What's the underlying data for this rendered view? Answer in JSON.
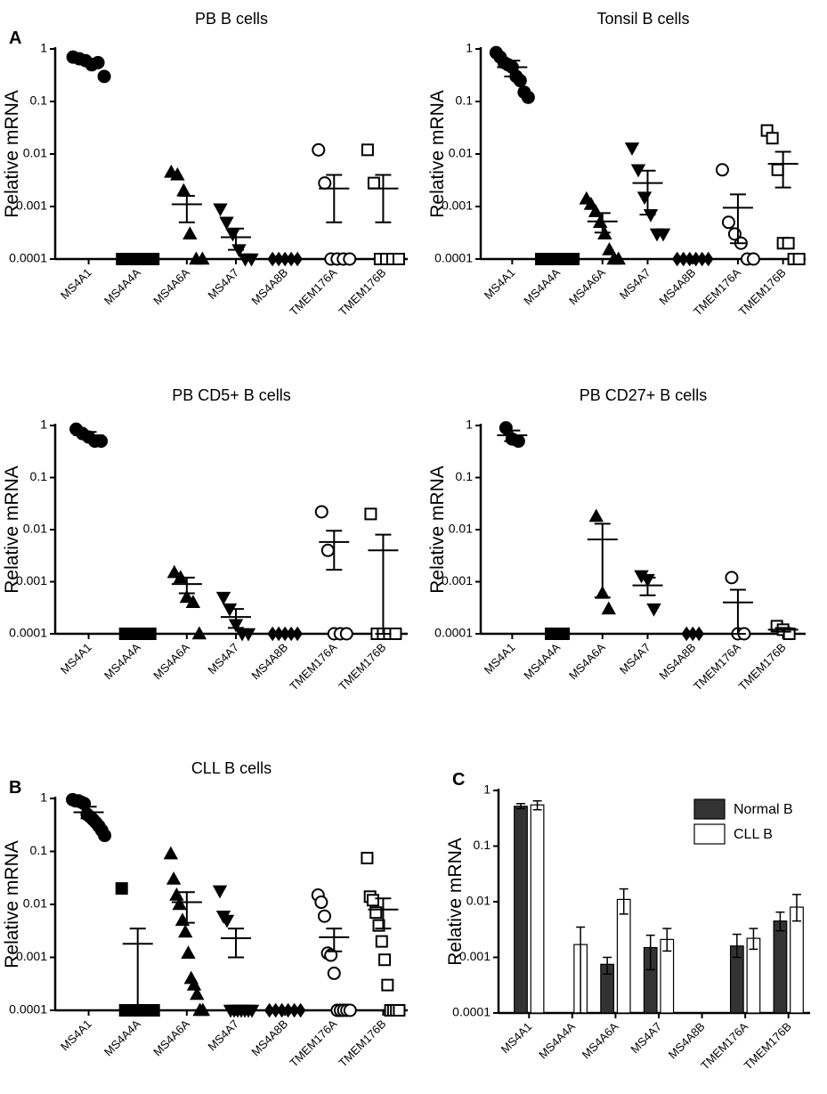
{
  "chart_data": [
    {
      "type": "dotplot",
      "panel_label": "A",
      "title": "PB B cells",
      "y_label": "Relative mRNA",
      "log_y": true,
      "categories": [
        "MS4A1",
        "MS4A4A",
        "MS4A6A",
        "MS4A7",
        "MS4A8B",
        "TMEM176A",
        "TMEM176B"
      ],
      "ylim": [
        0.0001,
        1
      ],
      "yticks": [
        0.0001,
        0.001,
        0.01,
        0.1,
        1
      ],
      "groups": [
        {
          "marker": "circle",
          "filled": true,
          "points": [
            0.7,
            0.65,
            0.6,
            0.5,
            0.55,
            0.3
          ],
          "mean": 0.6,
          "lower": 0.55,
          "upper": 0.65
        },
        {
          "marker": "square",
          "filled": true,
          "points": [
            0.0001,
            0.0001,
            0.0001,
            0.0001,
            0.0001,
            0.0001
          ],
          "mean": 0.0001,
          "lower": 0.0001,
          "upper": 0.0001
        },
        {
          "marker": "triangle-up",
          "filled": true,
          "points": [
            0.0045,
            0.004,
            0.002,
            0.0003,
            0.0001,
            0.0001
          ],
          "mean": 0.0011,
          "lower": 0.0005,
          "upper": 0.0016
        },
        {
          "marker": "triangle-down",
          "filled": true,
          "points": [
            0.0009,
            0.0005,
            0.0003,
            0.00015,
            0.0001,
            0.0001
          ],
          "mean": 0.00026,
          "lower": 0.00015,
          "upper": 0.00038
        },
        {
          "marker": "diamond",
          "filled": true,
          "points": [
            0.0001,
            0.0001,
            0.0001,
            0.0001,
            0.0001
          ],
          "mean": 0.0001,
          "lower": 0.0001,
          "upper": 0.0001
        },
        {
          "marker": "circle",
          "filled": false,
          "points": [
            0.012,
            0.0028,
            0.0001,
            0.0001,
            0.0001,
            0.0001
          ],
          "mean": 0.0022,
          "lower": 0.0005,
          "upper": 0.004
        },
        {
          "marker": "square",
          "filled": false,
          "points": [
            0.012,
            0.0028,
            0.0001,
            0.0001,
            0.0001,
            0.0001
          ],
          "mean": 0.0022,
          "lower": 0.0005,
          "upper": 0.004
        }
      ]
    },
    {
      "type": "dotplot",
      "title": "Tonsil B cells",
      "y_label": "Relative mRNA",
      "log_y": true,
      "categories": [
        "MS4A1",
        "MS4A4A",
        "MS4A6A",
        "MS4A7",
        "MS4A8B",
        "TMEM176A",
        "TMEM176B"
      ],
      "ylim": [
        0.0001,
        1
      ],
      "yticks": [
        0.0001,
        0.001,
        0.01,
        0.1,
        1
      ],
      "groups": [
        {
          "marker": "circle",
          "filled": true,
          "points": [
            0.85,
            0.7,
            0.55,
            0.5,
            0.45,
            0.3,
            0.25,
            0.15,
            0.12
          ],
          "mean": 0.45,
          "lower": 0.3,
          "upper": 0.6
        },
        {
          "marker": "square",
          "filled": true,
          "points": [
            0.0001,
            0.0001,
            0.0001,
            0.0001,
            0.0001,
            0.0001,
            0.0001,
            0.0001
          ],
          "mean": 0.0001,
          "lower": 0.0001,
          "upper": 0.0001
        },
        {
          "marker": "triangle-up",
          "filled": true,
          "points": [
            0.0014,
            0.0011,
            0.0008,
            0.0005,
            0.0003,
            0.00015,
            0.0001,
            0.0001
          ],
          "mean": 0.00052,
          "lower": 0.00032,
          "upper": 0.00075
        },
        {
          "marker": "triangle-down",
          "filled": true,
          "points": [
            0.013,
            0.005,
            0.0015,
            0.0007,
            0.0003,
            0.0003
          ],
          "mean": 0.0028,
          "lower": 0.0007,
          "upper": 0.0048
        },
        {
          "marker": "diamond",
          "filled": true,
          "points": [
            0.0001,
            0.0001,
            0.0001,
            0.0001,
            0.0001,
            0.0001
          ],
          "mean": 0.0001,
          "lower": 0.0001,
          "upper": 0.0001
        },
        {
          "marker": "circle",
          "filled": false,
          "points": [
            0.005,
            0.0005,
            0.0003,
            0.0002,
            0.0001,
            0.0001
          ],
          "mean": 0.00095,
          "lower": 0.0002,
          "upper": 0.0017
        },
        {
          "marker": "square",
          "filled": false,
          "points": [
            0.028,
            0.02,
            0.005,
            0.0002,
            0.0002,
            0.0001,
            0.0001
          ],
          "mean": 0.0065,
          "lower": 0.0023,
          "upper": 0.011
        }
      ]
    },
    {
      "type": "dotplot",
      "title": "PB CD5+ B cells",
      "y_label": "Relative mRNA",
      "log_y": true,
      "categories": [
        "MS4A1",
        "MS4A4A",
        "MS4A6A",
        "MS4A7",
        "MS4A8B",
        "TMEM176A",
        "TMEM176B"
      ],
      "ylim": [
        0.0001,
        1
      ],
      "yticks": [
        0.0001,
        0.001,
        0.01,
        0.1,
        1
      ],
      "groups": [
        {
          "marker": "circle",
          "filled": true,
          "points": [
            0.85,
            0.7,
            0.6,
            0.5,
            0.5
          ],
          "mean": 0.65,
          "lower": 0.55,
          "upper": 0.75
        },
        {
          "marker": "square",
          "filled": true,
          "points": [
            0.0001,
            0.0001,
            0.0001,
            0.0001,
            0.0001
          ],
          "mean": 0.0001,
          "lower": 0.0001,
          "upper": 0.0001
        },
        {
          "marker": "triangle-up",
          "filled": true,
          "points": [
            0.0015,
            0.0012,
            0.0005,
            0.0004,
            0.0001
          ],
          "mean": 0.0009,
          "lower": 0.0006,
          "upper": 0.0012
        },
        {
          "marker": "triangle-down",
          "filled": true,
          "points": [
            0.0005,
            0.0003,
            0.00015,
            0.0001,
            0.0001
          ],
          "mean": 0.00021,
          "lower": 0.00013,
          "upper": 0.0003
        },
        {
          "marker": "diamond",
          "filled": true,
          "points": [
            0.0001,
            0.0001,
            0.0001,
            0.0001,
            0.0001
          ],
          "mean": 0.0001,
          "lower": 0.0001,
          "upper": 0.0001
        },
        {
          "marker": "circle",
          "filled": false,
          "points": [
            0.022,
            0.004,
            0.0001,
            0.0001,
            0.0001
          ],
          "mean": 0.0058,
          "lower": 0.0017,
          "upper": 0.0095
        },
        {
          "marker": "square",
          "filled": false,
          "points": [
            0.02,
            0.0001,
            0.0001,
            0.0001,
            0.0001
          ],
          "mean": 0.004,
          "lower": 0.0001,
          "upper": 0.008
        }
      ]
    },
    {
      "type": "dotplot",
      "title": "PB CD27+ B cells",
      "y_label": "Relative mRNA",
      "log_y": true,
      "categories": [
        "MS4A1",
        "MS4A4A",
        "MS4A6A",
        "MS4A7",
        "MS4A8B",
        "TMEM176A",
        "TMEM176B"
      ],
      "ylim": [
        0.0001,
        1
      ],
      "yticks": [
        0.0001,
        0.001,
        0.01,
        0.1,
        1
      ],
      "groups": [
        {
          "marker": "circle",
          "filled": true,
          "points": [
            0.9,
            0.55,
            0.5
          ],
          "mean": 0.65,
          "lower": 0.5,
          "upper": 0.8
        },
        {
          "marker": "square",
          "filled": true,
          "points": [
            0.0001,
            0.0001,
            0.0001
          ],
          "mean": 0.0001,
          "lower": 0.0001,
          "upper": 0.0001
        },
        {
          "marker": "triangle-up",
          "filled": true,
          "points": [
            0.018,
            0.0006,
            0.0003
          ],
          "mean": 0.0065,
          "lower": 0.0005,
          "upper": 0.013
        },
        {
          "marker": "triangle-down",
          "filled": true,
          "points": [
            0.0013,
            0.0011,
            0.0003
          ],
          "mean": 0.00085,
          "lower": 0.00055,
          "upper": 0.0012
        },
        {
          "marker": "diamond",
          "filled": true,
          "points": [
            0.0001,
            0.0001,
            0.0001
          ],
          "mean": 0.0001,
          "lower": 0.0001,
          "upper": 0.0001
        },
        {
          "marker": "circle",
          "filled": false,
          "points": [
            0.0012,
            0.0001,
            0.0001
          ],
          "mean": 0.0004,
          "lower": 0.0001,
          "upper": 0.0007
        },
        {
          "marker": "square",
          "filled": false,
          "points": [
            0.00014,
            0.00012,
            0.0001
          ],
          "mean": 0.00012,
          "lower": 0.00011,
          "upper": 0.00013
        }
      ]
    },
    {
      "type": "dotplot",
      "panel_label": "B",
      "title": "CLL B cells",
      "y_label": "Relative mRNA",
      "log_y": true,
      "categories": [
        "MS4A1",
        "MS4A4A",
        "MS4A6A",
        "MS4A7",
        "MS4A8B",
        "TMEM176A",
        "TMEM176B"
      ],
      "ylim": [
        0.0001,
        1
      ],
      "yticks": [
        0.0001,
        0.001,
        0.01,
        0.1,
        1
      ],
      "groups": [
        {
          "marker": "circle",
          "filled": true,
          "points": [
            0.95,
            0.9,
            0.9,
            0.85,
            0.8,
            0.5,
            0.45,
            0.4,
            0.35,
            0.3,
            0.25,
            0.2
          ],
          "mean": 0.55,
          "lower": 0.42,
          "upper": 0.7
        },
        {
          "marker": "square",
          "filled": true,
          "points": [
            0.02,
            0.0001,
            0.0001,
            0.0001,
            0.0001,
            0.0001,
            0.0001,
            0.0001,
            0.0001,
            0.0001
          ],
          "mean": 0.0018,
          "lower": 0.0001,
          "upper": 0.0035
        },
        {
          "marker": "triangle-up",
          "filled": true,
          "points": [
            0.09,
            0.03,
            0.015,
            0.01,
            0.005,
            0.003,
            0.0012,
            0.0004,
            0.0003,
            0.0002,
            0.0001,
            0.0001
          ],
          "mean": 0.011,
          "lower": 0.0045,
          "upper": 0.017
        },
        {
          "marker": "triangle-down",
          "filled": true,
          "points": [
            0.018,
            0.006,
            0.005,
            0.0001,
            0.0001,
            0.0001,
            0.0001,
            0.0001,
            0.0001,
            0.0001
          ],
          "mean": 0.0023,
          "lower": 0.001,
          "upper": 0.0035
        },
        {
          "marker": "diamond",
          "filled": true,
          "points": [
            0.0001,
            0.0001,
            0.0001,
            0.0001,
            0.0001,
            0.0001
          ],
          "mean": 0.0001,
          "lower": 0.0001,
          "upper": 0.0001
        },
        {
          "marker": "circle",
          "filled": false,
          "points": [
            0.015,
            0.011,
            0.006,
            0.0012,
            0.0011,
            0.0005,
            0.0001,
            0.0001,
            0.0001,
            0.0001,
            0.0001
          ],
          "mean": 0.0024,
          "lower": 0.0013,
          "upper": 0.0035
        },
        {
          "marker": "square",
          "filled": false,
          "points": [
            0.075,
            0.014,
            0.012,
            0.007,
            0.004,
            0.002,
            0.0009,
            0.0003,
            0.0001,
            0.0001,
            0.0001,
            0.0001
          ],
          "mean": 0.008,
          "lower": 0.0035,
          "upper": 0.013
        }
      ]
    },
    {
      "type": "bar",
      "panel_label": "C",
      "y_label": "Relative mRNA",
      "log_y": true,
      "legend": "upper right",
      "categories": [
        "MS4A1",
        "MS4A4A",
        "MS4A6A",
        "MS4A7",
        "MS4A8B",
        "TMEM176A",
        "TMEM176B"
      ],
      "ylim": [
        0.0001,
        1
      ],
      "yticks": [
        0.0001,
        0.001,
        0.01,
        0.1,
        1
      ],
      "series": [
        {
          "name": "Normal B",
          "color": "#333333",
          "values": [
            0.52,
            null,
            0.00075,
            0.0015,
            null,
            0.0016,
            0.0045
          ],
          "lower": [
            0.47,
            null,
            0.0005,
            0.0006,
            null,
            0.001,
            0.003
          ],
          "upper": [
            0.58,
            null,
            0.001,
            0.0025,
            null,
            0.0026,
            0.0065
          ]
        },
        {
          "name": "CLL B",
          "color": "#ffffff",
          "values": [
            0.55,
            0.0017,
            0.011,
            0.0021,
            null,
            0.0022,
            0.008
          ],
          "lower": [
            0.45,
            0.0001,
            0.006,
            0.0013,
            null,
            0.0014,
            0.0045
          ],
          "upper": [
            0.65,
            0.0035,
            0.017,
            0.0033,
            null,
            0.0033,
            0.0135
          ]
        }
      ]
    }
  ]
}
